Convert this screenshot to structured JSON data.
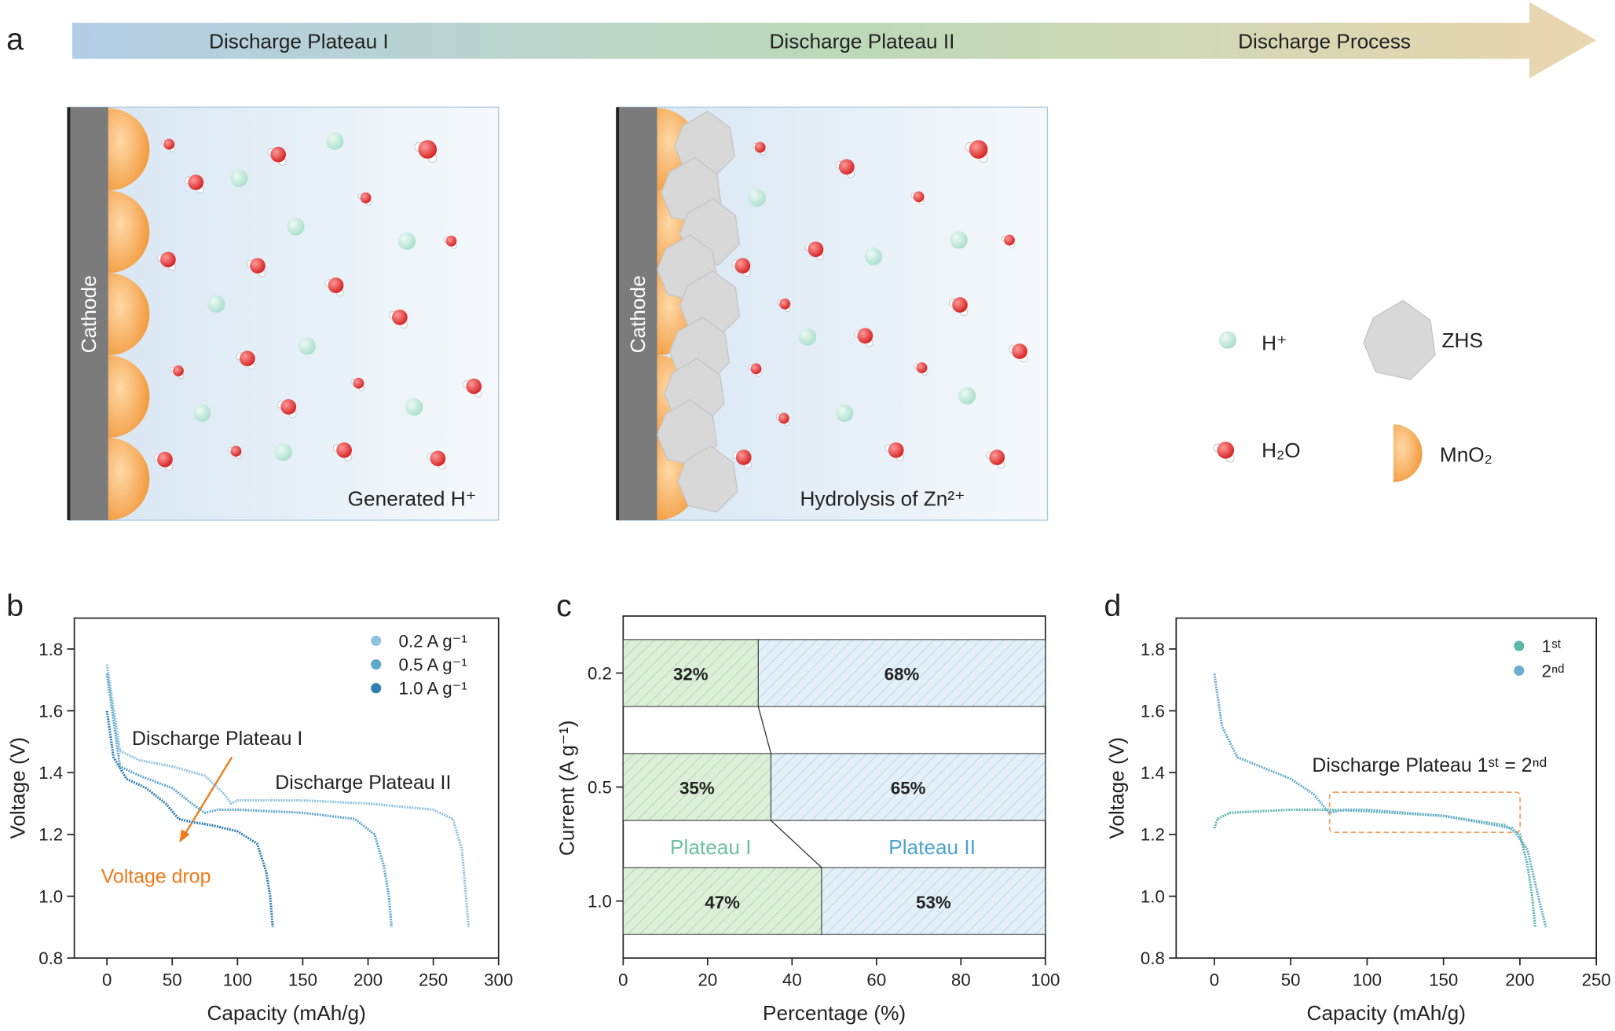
{
  "panel_labels": [
    "a",
    "b",
    "c",
    "d"
  ],
  "diagram": {
    "arrow_labels": [
      "Discharge Plateau I",
      "Discharge Plateau II",
      "Discharge Process"
    ],
    "cathode_label": "Cathode",
    "box_captions": [
      "Generated H⁺",
      "Hydrolysis of Zn²⁺"
    ],
    "legend": [
      "H⁺",
      "ZHS",
      "H₂O",
      "MnO₂"
    ]
  },
  "chart_data": [
    {
      "type": "line",
      "xlabel": "Capacity (mAh/g)",
      "ylabel": "Voltage (V)",
      "xlim": [
        -25,
        300
      ],
      "ylim": [
        0.8,
        1.9
      ],
      "xticks": [
        0,
        50,
        100,
        150,
        200,
        250,
        300
      ],
      "yticks": [
        {
          "value": 0.8,
          "label": "0.8"
        },
        {
          "value": 1,
          "label": "1.0"
        },
        {
          "value": 1.2,
          "label": "1.2"
        },
        {
          "value": 1.4,
          "label": "1.4"
        },
        {
          "value": 1.6,
          "label": "1.6"
        },
        {
          "value": 1.8,
          "label": "1.8"
        }
      ],
      "annotations": [
        "Discharge Plateau I",
        "Discharge Plateau II",
        "Voltage drop"
      ],
      "series": [
        {
          "name": "0.2 A g⁻¹",
          "color": "#8ec3dd",
          "x": [
            0,
            10,
            25,
            50,
            75,
            90,
            95,
            100,
            150,
            200,
            250,
            265,
            272,
            275,
            277
          ],
          "values": [
            1.75,
            1.47,
            1.44,
            1.42,
            1.39,
            1.33,
            1.3,
            1.31,
            1.31,
            1.3,
            1.28,
            1.25,
            1.15,
            1.0,
            0.9
          ]
        },
        {
          "name": "0.5 A g⁻¹",
          "color": "#5fa8cc",
          "x": [
            0,
            10,
            25,
            50,
            65,
            75,
            85,
            100,
            150,
            190,
            205,
            212,
            216,
            218
          ],
          "values": [
            1.72,
            1.42,
            1.39,
            1.35,
            1.3,
            1.27,
            1.28,
            1.28,
            1.27,
            1.25,
            1.2,
            1.1,
            1.0,
            0.9
          ]
        },
        {
          "name": "1.0 A g⁻¹",
          "color": "#2f7fb0",
          "x": [
            0,
            5,
            15,
            30,
            45,
            55,
            65,
            80,
            100,
            115,
            122,
            125,
            127
          ],
          "values": [
            1.6,
            1.45,
            1.38,
            1.35,
            1.3,
            1.25,
            1.24,
            1.23,
            1.21,
            1.17,
            1.08,
            1.0,
            0.9
          ]
        }
      ]
    },
    {
      "type": "bar",
      "orientation": "horizontal",
      "stacked": true,
      "xlabel": "Percentage (%)",
      "ylabel": "Current (A g⁻¹)",
      "categories": [
        "0.2",
        "0.5",
        "1.0"
      ],
      "xlim": [
        0,
        100
      ],
      "xticks": [
        0,
        20,
        40,
        60,
        80,
        100
      ],
      "series": [
        {
          "name": "Plateau I",
          "color": "#6cc0a0",
          "values": [
            32,
            35,
            47
          ],
          "value_labels": [
            "32%",
            "35%",
            "47%"
          ]
        },
        {
          "name": "Plateau II",
          "color": "#4ca3cf",
          "values": [
            68,
            65,
            53
          ],
          "value_labels": [
            "68%",
            "65%",
            "53%"
          ]
        }
      ]
    },
    {
      "type": "line",
      "xlabel": "Capacity (mAh/g)",
      "ylabel": "Voltage (V)",
      "xlim": [
        -25,
        250
      ],
      "ylim": [
        0.8,
        1.9
      ],
      "xticks": [
        0,
        50,
        100,
        150,
        200,
        250
      ],
      "yticks": [
        {
          "value": 0.8,
          "label": "0.8"
        },
        {
          "value": 1,
          "label": "1.0"
        },
        {
          "value": 1.2,
          "label": "1.2"
        },
        {
          "value": 1.4,
          "label": "1.4"
        },
        {
          "value": 1.6,
          "label": "1.6"
        },
        {
          "value": 1.8,
          "label": "1.8"
        }
      ],
      "annotations": [
        "Discharge Plateau 1ˢᵗ = 2ⁿᵈ"
      ],
      "series": [
        {
          "name": "1ˢᵗ",
          "color": "#5bb8a8",
          "x": [
            0,
            2,
            10,
            50,
            75,
            100,
            150,
            190,
            200,
            205,
            208,
            210
          ],
          "values": [
            1.22,
            1.25,
            1.27,
            1.28,
            1.28,
            1.275,
            1.26,
            1.23,
            1.2,
            1.1,
            1.0,
            0.9
          ]
        },
        {
          "name": "2ⁿᵈ",
          "color": "#6aaecf",
          "x": [
            0,
            5,
            15,
            30,
            50,
            65,
            75,
            85,
            100,
            150,
            195,
            205,
            212,
            217
          ],
          "values": [
            1.72,
            1.55,
            1.45,
            1.42,
            1.38,
            1.33,
            1.27,
            1.28,
            1.28,
            1.26,
            1.22,
            1.15,
            1.0,
            0.9
          ]
        }
      ]
    }
  ]
}
